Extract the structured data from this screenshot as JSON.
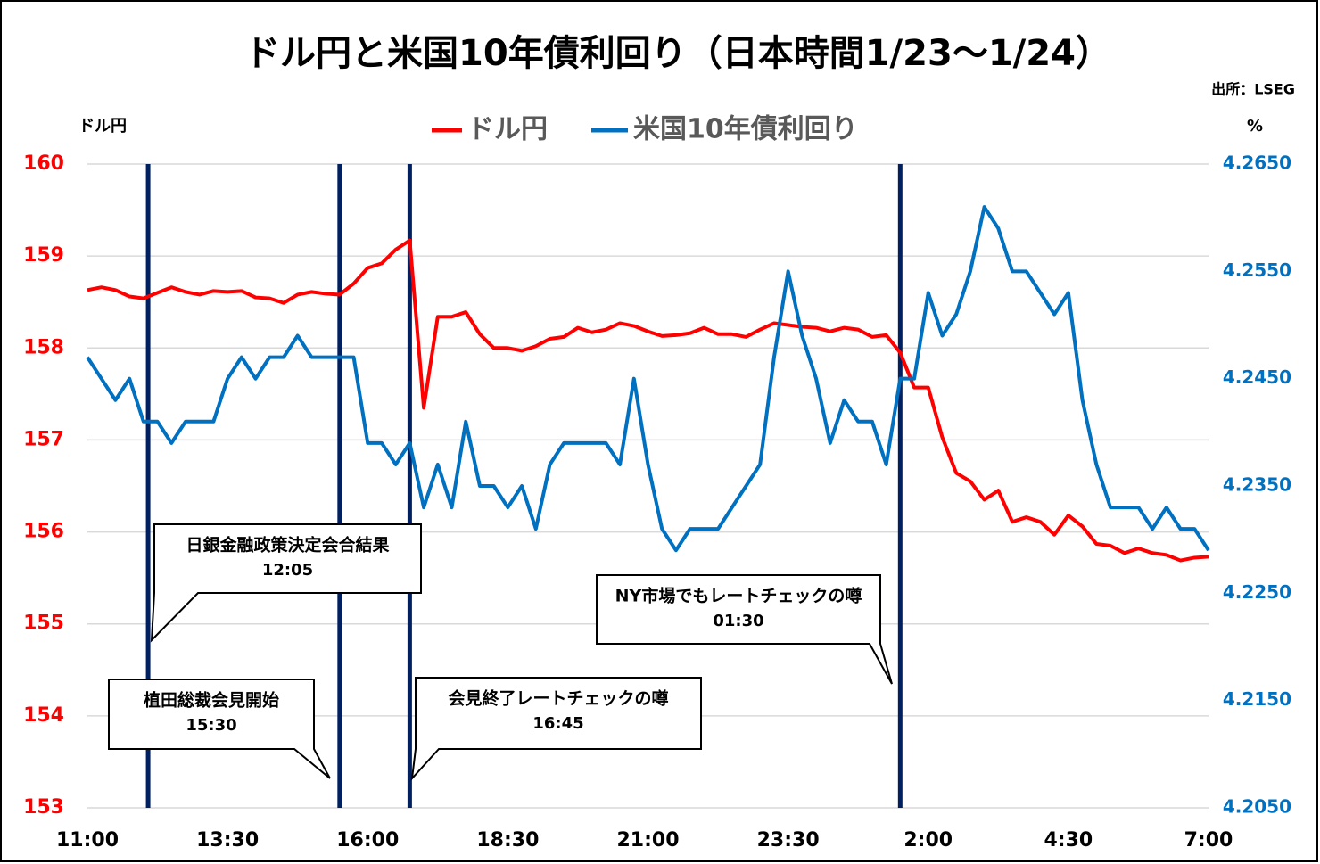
{
  "chart_data": {
    "type": "line",
    "title": "ドル円と米国10年債利回り（日本時間1/23～1/24）",
    "source": "出所：LSEG",
    "ylabel": "ドル円",
    "y2label": "%",
    "categories": [
      "11:00",
      null,
      null,
      null,
      null,
      null,
      null,
      null,
      null,
      null,
      "13:30",
      null,
      null,
      null,
      null,
      null,
      null,
      null,
      null,
      null,
      "16:00",
      null,
      null,
      null,
      null,
      null,
      null,
      null,
      null,
      null,
      "18:30",
      null,
      null,
      null,
      null,
      null,
      null,
      null,
      null,
      null,
      "21:00",
      null,
      null,
      null,
      null,
      null,
      null,
      null,
      null,
      null,
      "23:30",
      null,
      null,
      null,
      null,
      null,
      null,
      null,
      null,
      null,
      "2:00",
      null,
      null,
      null,
      null,
      null,
      null,
      null,
      null,
      null,
      "4:30",
      null,
      null,
      null,
      null,
      null,
      null,
      null,
      null,
      null,
      "7:00"
    ],
    "series": [
      {
        "name": "ドル円",
        "color": "#ff0000",
        "axis": "y",
        "values": [
          158.63,
          158.66,
          158.63,
          158.56,
          158.54,
          158.6,
          158.66,
          158.61,
          158.58,
          158.62,
          158.61,
          158.62,
          158.55,
          158.54,
          158.49,
          158.58,
          158.61,
          158.59,
          158.58,
          158.7,
          158.87,
          158.92,
          159.07,
          159.17,
          157.35,
          158.34,
          158.34,
          158.39,
          158.15,
          158.0,
          158.0,
          157.97,
          158.02,
          158.1,
          158.12,
          158.22,
          158.17,
          158.2,
          158.27,
          158.24,
          158.18,
          158.13,
          158.14,
          158.16,
          158.22,
          158.15,
          158.15,
          158.12,
          158.2,
          158.27,
          158.25,
          158.23,
          158.22,
          158.18,
          158.22,
          158.2,
          158.12,
          158.14,
          157.95,
          157.57,
          157.57,
          157.03,
          156.64,
          156.55,
          156.35,
          156.45,
          156.11,
          156.16,
          156.11,
          155.97,
          156.18,
          156.06,
          155.87,
          155.85,
          155.77,
          155.82,
          155.77,
          155.75,
          155.69,
          155.72,
          155.73
        ]
      },
      {
        "name": "米国10年債利回り",
        "color": "#0070c0",
        "axis": "y2",
        "values": [
          4.247,
          4.245,
          4.243,
          4.245,
          4.241,
          4.241,
          4.239,
          4.241,
          4.241,
          4.241,
          4.245,
          4.247,
          4.245,
          4.247,
          4.247,
          4.249,
          4.247,
          4.247,
          4.247,
          4.247,
          4.239,
          4.239,
          4.237,
          4.239,
          4.233,
          4.237,
          4.233,
          4.241,
          4.235,
          4.235,
          4.233,
          4.235,
          4.231,
          4.237,
          4.239,
          4.239,
          4.239,
          4.239,
          4.237,
          4.245,
          4.237,
          4.231,
          4.229,
          4.231,
          4.231,
          4.231,
          4.233,
          4.235,
          4.237,
          4.247,
          4.255,
          4.249,
          4.245,
          4.239,
          4.243,
          4.241,
          4.241,
          4.237,
          4.245,
          4.245,
          4.253,
          4.249,
          4.251,
          4.255,
          4.261,
          4.259,
          4.255,
          4.255,
          4.253,
          4.251,
          4.253,
          4.243,
          4.237,
          4.233,
          4.233,
          4.233,
          4.231,
          4.233,
          4.231,
          4.231,
          4.229
        ]
      }
    ],
    "ylim": [
      153,
      160
    ],
    "yticks": [
      153,
      154,
      155,
      156,
      157,
      158,
      159,
      160
    ],
    "y2lim": [
      4.205,
      4.265
    ],
    "y2ticks": [
      {
        "value": 4.205,
        "label": "4.2050"
      },
      {
        "value": 4.215,
        "label": "4.2150"
      },
      {
        "value": 4.225,
        "label": "4.2250"
      },
      {
        "value": 4.235,
        "label": "4.2350"
      },
      {
        "value": 4.245,
        "label": "4.2450"
      },
      {
        "value": 4.255,
        "label": "4.2550"
      },
      {
        "value": 4.265,
        "label": "4.2650"
      }
    ],
    "grid": true,
    "events": [
      {
        "label": "日銀金融政策決定会合結果",
        "time": "12:05"
      },
      {
        "label": "植田総裁会見開始",
        "time": "15:30"
      },
      {
        "label": "会見終了レートチェックの噂",
        "time": "16:45"
      },
      {
        "label": "NY市場でもレートチェックの噂",
        "time": "01:30"
      }
    ]
  }
}
